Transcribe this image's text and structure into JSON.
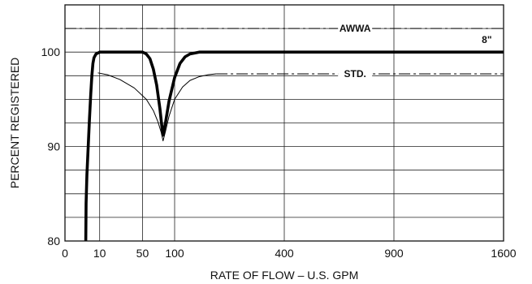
{
  "chart_data": {
    "type": "line",
    "title": "",
    "xlabel": "RATE OF FLOW – U.S. GPM",
    "ylabel": "PERCENT REGISTERED",
    "x_scale": "sqrt",
    "xlim": [
      0,
      1600
    ],
    "ylim": [
      80,
      105
    ],
    "x_ticks": [
      0,
      10,
      50,
      100,
      400,
      900,
      1600
    ],
    "x_tick_labels": [
      "0",
      "10",
      "50",
      "100",
      "400",
      "900",
      "1600"
    ],
    "y_ticks": [
      80,
      90,
      100
    ],
    "y_tick_labels": [
      "80",
      "90",
      "100"
    ],
    "grid": true,
    "series": [
      {
        "name": "8\"",
        "style": "thick-solid",
        "color": "#000000",
        "x": [
          3.6,
          3.7,
          4,
          4.5,
          5,
          5.5,
          6,
          6.5,
          7,
          8,
          9,
          10,
          15,
          25,
          40,
          50,
          55,
          60,
          65,
          70,
          75,
          78,
          80,
          84,
          90,
          100,
          110,
          120,
          130,
          140,
          150,
          160,
          400,
          900,
          1600
        ],
        "y": [
          80,
          84,
          87,
          90,
          93,
          95.5,
          97.5,
          98.8,
          99.4,
          99.8,
          99.9,
          100,
          100,
          100,
          100,
          100,
          99.8,
          99.3,
          98.2,
          96.5,
          94,
          92.2,
          91.2,
          92.5,
          94.8,
          97.3,
          98.8,
          99.5,
          99.8,
          99.9,
          100,
          100,
          100,
          100,
          100
        ]
      },
      {
        "name": "STD.",
        "style": "thin-solid-then-dashdot",
        "color": "#000000",
        "x": [
          9,
          15,
          25,
          40,
          55,
          65,
          72,
          77,
          80,
          84,
          90,
          100,
          115,
          130,
          150,
          170,
          190,
          210,
          400,
          900,
          1600
        ],
        "y": [
          97.8,
          97.6,
          97.1,
          96.2,
          95,
          93.8,
          92.6,
          91.5,
          90.6,
          91.6,
          93.2,
          95,
          96.3,
          97,
          97.4,
          97.6,
          97.7,
          97.7,
          97.7,
          97.7,
          97.7
        ]
      }
    ],
    "reference_lines": [
      {
        "label": "AWWA",
        "y": 102.5,
        "style": "dashdot"
      }
    ],
    "annotations": [
      {
        "text": "AWWA",
        "x": 700,
        "y": 102.5
      },
      {
        "text": "STD.",
        "x": 700,
        "y": 97.7
      },
      {
        "text": "8\"",
        "x": 1480,
        "y": 100.7
      }
    ]
  }
}
